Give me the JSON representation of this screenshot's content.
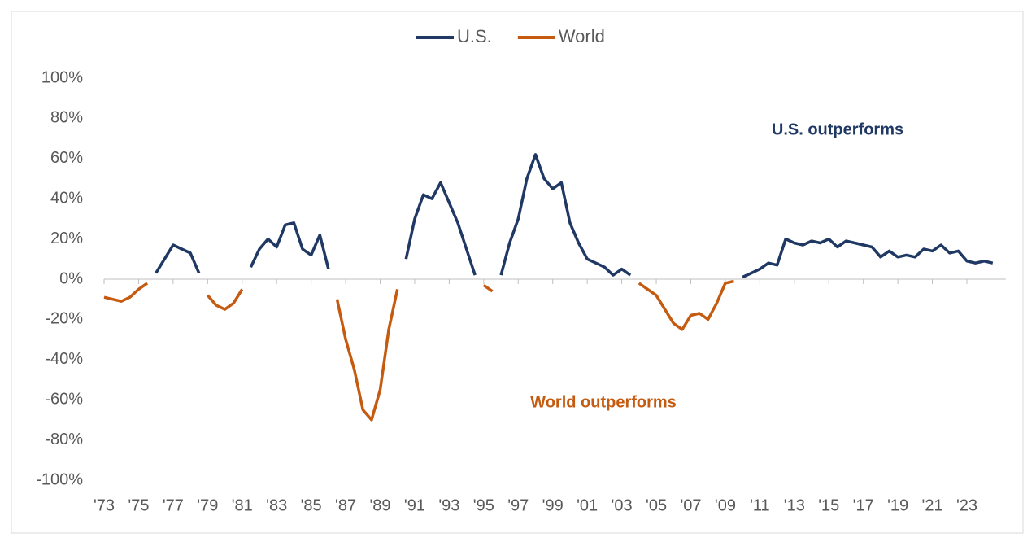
{
  "chart_data": {
    "type": "line",
    "categories": [
      "'73",
      null,
      null,
      null,
      "'75",
      null,
      null,
      null,
      "'77",
      null,
      null,
      null,
      "'79",
      null,
      null,
      null,
      "'81",
      null,
      null,
      null,
      "'83",
      null,
      null,
      null,
      "'85",
      null,
      null,
      null,
      "'87",
      null,
      null,
      null,
      "'89",
      null,
      null,
      null,
      "'91",
      null,
      null,
      null,
      "'93",
      null,
      null,
      null,
      "'95",
      null,
      null,
      null,
      "'97",
      null,
      null,
      null,
      "'99",
      null,
      null,
      null,
      "'01",
      null,
      null,
      null,
      "'03",
      null,
      null,
      null,
      "'05",
      null,
      null,
      null,
      "'07",
      null,
      null,
      null,
      "'09",
      null,
      null,
      null,
      "'11",
      null,
      null,
      null,
      "'13",
      null,
      null,
      null,
      "'15",
      null,
      null,
      null,
      "'17",
      null,
      null,
      null,
      "'19",
      null,
      null,
      null,
      "'21",
      null,
      null,
      null,
      "'23",
      null,
      null,
      null
    ],
    "series": [
      {
        "name": "U.S.",
        "color": "#1f3864",
        "values": [
          null,
          null,
          null,
          null,
          null,
          null,
          3,
          10,
          17,
          15,
          13,
          3,
          null,
          null,
          null,
          null,
          null,
          6,
          15,
          20,
          16,
          27,
          28,
          15,
          12,
          22,
          5,
          null,
          null,
          null,
          null,
          null,
          null,
          null,
          null,
          10,
          30,
          42,
          40,
          48,
          38,
          28,
          15,
          2,
          null,
          null,
          2,
          18,
          30,
          50,
          62,
          50,
          45,
          48,
          28,
          18,
          10,
          8,
          6,
          2,
          5,
          2,
          null,
          null,
          null,
          null,
          null,
          null,
          null,
          null,
          null,
          null,
          null,
          null,
          1,
          3,
          5,
          8,
          7,
          20,
          18,
          17,
          19,
          18,
          20,
          16,
          19,
          18,
          17,
          16,
          11,
          14,
          11,
          12,
          11,
          15,
          14,
          17,
          13,
          14,
          9,
          8,
          9,
          8
        ]
      },
      {
        "name": "World",
        "color": "#c55a11",
        "values": [
          -9,
          -10,
          -11,
          -9,
          -5,
          -2,
          null,
          null,
          null,
          null,
          null,
          null,
          -8,
          -13,
          -15,
          -12,
          -5,
          null,
          null,
          null,
          null,
          null,
          null,
          null,
          null,
          null,
          null,
          -10,
          -30,
          -45,
          -65,
          -70,
          -55,
          -25,
          -5,
          null,
          null,
          null,
          null,
          null,
          null,
          null,
          null,
          null,
          -3,
          -6,
          null,
          null,
          null,
          null,
          null,
          null,
          null,
          null,
          null,
          null,
          null,
          null,
          null,
          null,
          null,
          null,
          -2,
          -5,
          -8,
          -15,
          -22,
          -25,
          -18,
          -17,
          -20,
          -12,
          -2,
          -1,
          null,
          null,
          null,
          null,
          null,
          null,
          null,
          null,
          null,
          null,
          null,
          null,
          null,
          null,
          null,
          null,
          null,
          null,
          null,
          null,
          null,
          null,
          null,
          null,
          null,
          null,
          null,
          null,
          null,
          null
        ]
      }
    ],
    "ylim": [
      -100,
      100
    ],
    "yticks": [
      {
        "value": -100,
        "label": "-100%"
      },
      {
        "value": -80,
        "label": "-80%"
      },
      {
        "value": -60,
        "label": "-60%"
      },
      {
        "value": -40,
        "label": "-40%"
      },
      {
        "value": -20,
        "label": "-20%"
      },
      {
        "value": 0,
        "label": "0%"
      },
      {
        "value": 20,
        "label": "20%"
      },
      {
        "value": 40,
        "label": "40%"
      },
      {
        "value": 60,
        "label": "60%"
      },
      {
        "value": 80,
        "label": "80%"
      },
      {
        "value": 100,
        "label": "100%"
      }
    ],
    "annotations": [
      {
        "text": "U.S. outperforms",
        "color": "#1f3864"
      },
      {
        "text": "World outperforms",
        "color": "#c55a11"
      }
    ]
  }
}
